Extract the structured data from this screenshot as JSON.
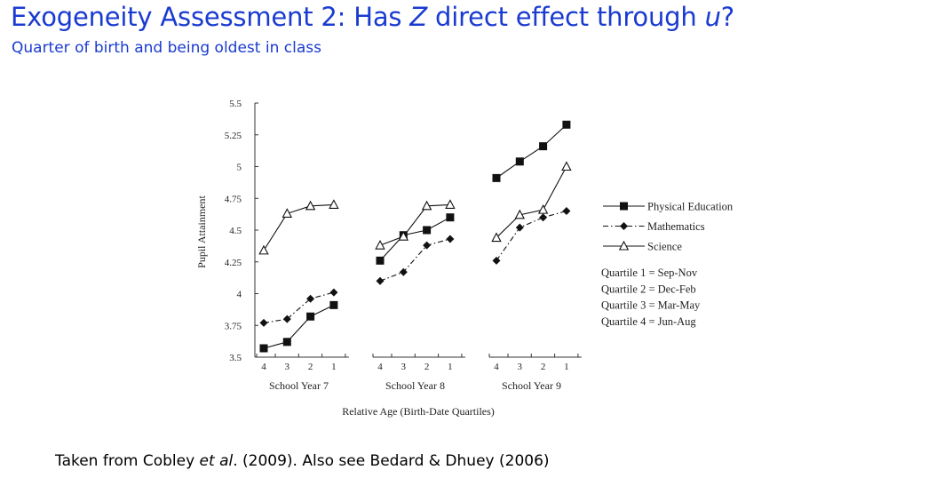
{
  "page": {
    "title_prefix": "Exogeneity Assessment 2: Has ",
    "title_var": "Z",
    "title_mid": " direct effect through ",
    "title_var2": "u",
    "title_suffix": "?",
    "subtitle": "Quarter of birth and being oldest in class",
    "footer_prefix": "Taken from Cobley ",
    "footer_etal": "et al",
    "footer_suffix": ". (2009). Also see Bedard & Dhuey (2006)"
  },
  "chart_data": {
    "type": "line",
    "ylabel": "Pupil Attainment",
    "xlabel": "Relative Age (Birth-Date Quartiles)",
    "ylim": [
      3.5,
      5.5
    ],
    "yticks": [
      "3.5",
      "3.75",
      "4",
      "4.25",
      "4.5",
      "4.75",
      "5",
      "5.25",
      "5.5"
    ],
    "groups": [
      {
        "name": "School Year 7",
        "quartiles": [
          "4",
          "3",
          "2",
          "1"
        ]
      },
      {
        "name": "School Year 8",
        "quartiles": [
          "4",
          "3",
          "2",
          "1"
        ]
      },
      {
        "name": "School Year 9",
        "quartiles": [
          "4",
          "3",
          "2",
          "1"
        ]
      }
    ],
    "series": [
      {
        "name": "Physical Education",
        "marker": "square",
        "dash": "solid",
        "values": [
          [
            3.57,
            3.62,
            3.82,
            3.91
          ],
          [
            4.26,
            4.46,
            4.5,
            4.6
          ],
          [
            4.91,
            5.04,
            5.16,
            5.33
          ]
        ]
      },
      {
        "name": "Mathematics",
        "marker": "diamond",
        "dash": "dashed",
        "values": [
          [
            3.77,
            3.8,
            3.96,
            4.01
          ],
          [
            4.1,
            4.17,
            4.38,
            4.43
          ],
          [
            4.26,
            4.52,
            4.6,
            4.65
          ]
        ]
      },
      {
        "name": "Science",
        "marker": "triangle",
        "dash": "solid",
        "values": [
          [
            4.34,
            4.63,
            4.69,
            4.7
          ],
          [
            4.38,
            4.45,
            4.69,
            4.7
          ],
          [
            4.44,
            4.62,
            4.66,
            5.0
          ]
        ]
      }
    ],
    "legend_notes": [
      "Quartile 1 = Sep-Nov",
      "Quartile 2 = Dec-Feb",
      "Quartile 3 = Mar-May",
      "Quartile 4 = Jun-Aug"
    ],
    "legend_position": "right",
    "grid": false
  }
}
